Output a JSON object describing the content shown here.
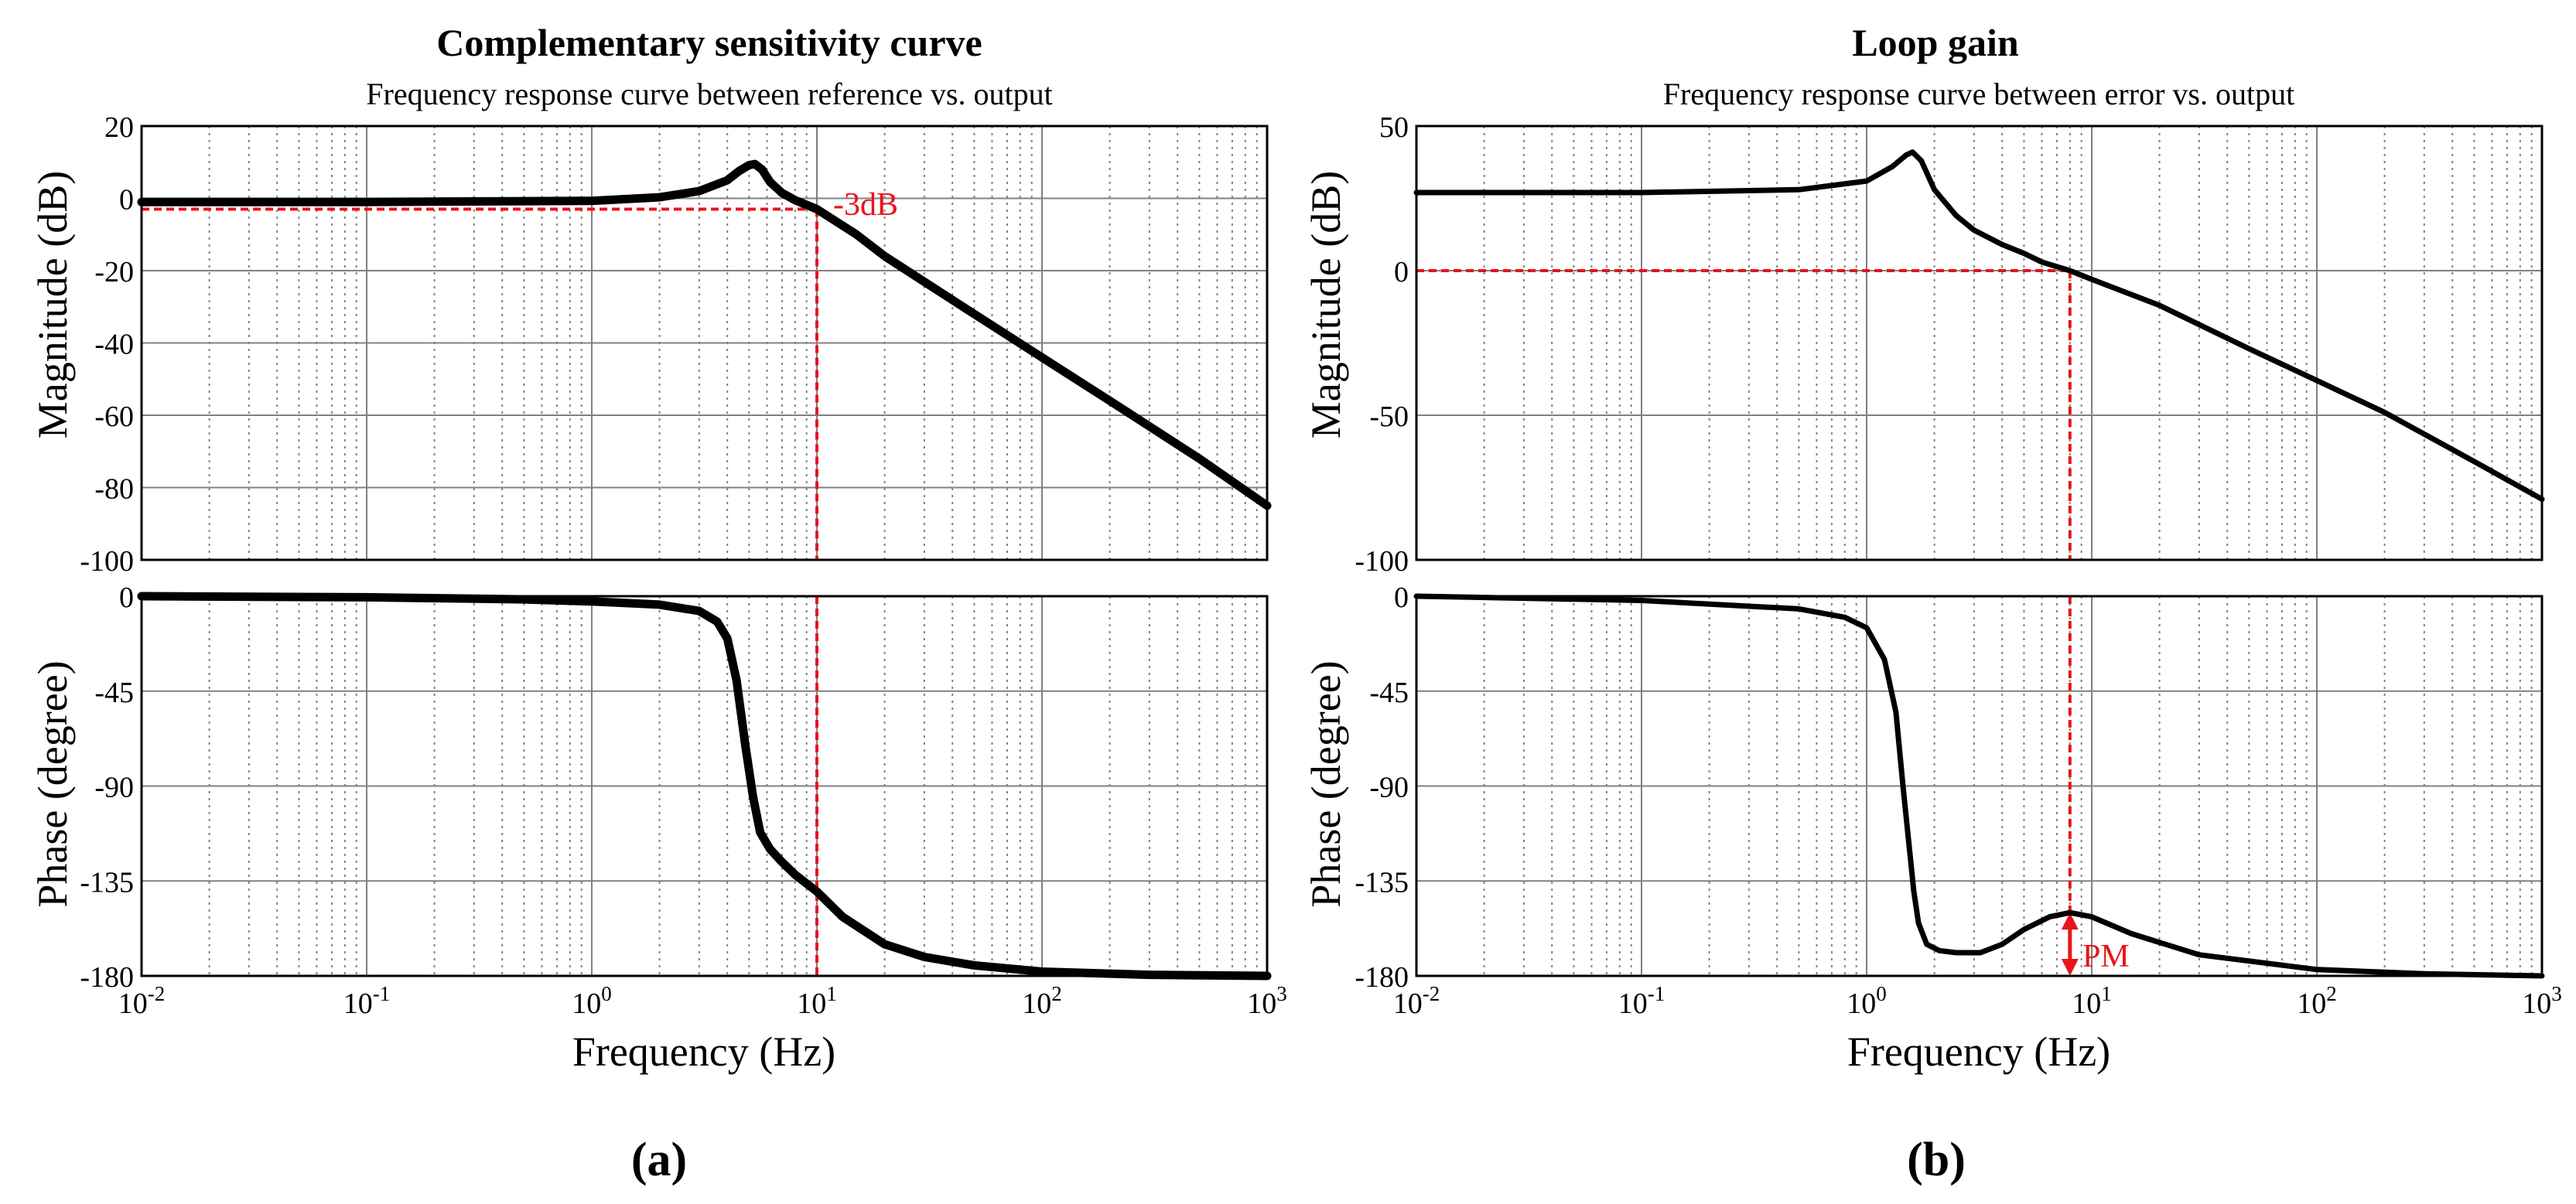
{
  "colors": {
    "curve": "#000000",
    "annotation": "#e8141b",
    "grid": "#808080",
    "axis": "#000000"
  },
  "chart_data": [
    {
      "type": "line",
      "panel_label": "(a)",
      "title": "Complementary sensitivity curve",
      "subtitle": "Frequency response curve between reference vs. output",
      "xlabel": "Frequency (Hz)",
      "x_scale": "log",
      "xlim": [
        0.01,
        1000
      ],
      "x_ticks": [
        {
          "base": "10",
          "exp": "-2"
        },
        {
          "base": "10",
          "exp": "-1"
        },
        {
          "base": "10",
          "exp": "0"
        },
        {
          "base": "10",
          "exp": "1"
        },
        {
          "base": "10",
          "exp": "2"
        },
        {
          "base": "10",
          "exp": "3"
        }
      ],
      "magnitude": {
        "ylabel": "Magnitude (dB)",
        "ylim": [
          -100,
          20
        ],
        "y_ticks": [
          20,
          0,
          -20,
          -40,
          -60,
          -80,
          -100
        ],
        "y_tick_labels": [
          "20",
          "0",
          "-20",
          "-40",
          "-60",
          "-80",
          "-100"
        ],
        "series": [
          {
            "name": "magnitude",
            "x": [
              0.01,
              0.1,
              1,
              2,
              3,
              4,
              4.5,
              5,
              5.3,
              5.7,
              6.2,
              7,
              8,
              10,
              15,
              20,
              50,
              100,
              200,
              500,
              1000
            ],
            "y": [
              -1,
              -1,
              -0.7,
              0.3,
              2,
              5,
              7.5,
              9.2,
              9.5,
              8,
              4.5,
              1.5,
              -0.5,
              -3,
              -10,
              -16,
              -32,
              -44,
              -56,
              -72,
              -85
            ]
          }
        ]
      },
      "phase": {
        "ylabel": "Phase (degree)",
        "ylim": [
          -180,
          0
        ],
        "y_ticks": [
          0,
          -45,
          -90,
          -135,
          -180
        ],
        "y_tick_labels": [
          "0",
          "-45",
          "-90",
          "-135",
          "-180"
        ],
        "series": [
          {
            "name": "phase",
            "x": [
              0.01,
              0.1,
              0.5,
              1,
              2,
              3,
              3.6,
              4,
              4.4,
              4.8,
              5.2,
              5.6,
              6.2,
              7,
              8,
              10,
              13,
              20,
              30,
              50,
              100,
              300,
              1000
            ],
            "y": [
              0,
              -0.5,
              -1.5,
              -2.5,
              -4,
              -7,
              -12,
              -20,
              -40,
              -70,
              -95,
              -112,
              -120,
              -126,
              -132,
              -140,
              -152,
              -165,
              -171,
              -175,
              -178,
              -179.5,
              -180
            ]
          }
        ]
      },
      "annotation": {
        "label": "-3dB",
        "x": 10,
        "y_mag": -3
      }
    },
    {
      "type": "line",
      "panel_label": "(b)",
      "title": "Loop gain",
      "subtitle": "Frequency response curve between error vs. output",
      "xlabel": "Frequency (Hz)",
      "x_scale": "log",
      "xlim": [
        0.01,
        1000
      ],
      "x_ticks": [
        {
          "base": "10",
          "exp": "-2"
        },
        {
          "base": "10",
          "exp": "-1"
        },
        {
          "base": "10",
          "exp": "0"
        },
        {
          "base": "10",
          "exp": "1"
        },
        {
          "base": "10",
          "exp": "2"
        },
        {
          "base": "10",
          "exp": "3"
        }
      ],
      "magnitude": {
        "ylabel": "Magnitude (dB)",
        "ylim": [
          -100,
          50
        ],
        "y_ticks": [
          50,
          0,
          -50,
          -100
        ],
        "y_tick_labels": [
          "50",
          "0",
          "-50",
          "-100"
        ],
        "series": [
          {
            "name": "magnitude",
            "x": [
              0.01,
              0.1,
              0.5,
              1,
              1.3,
              1.5,
              1.6,
              1.75,
              2,
              2.5,
              3,
              4,
              5,
              6,
              8,
              10,
              20,
              50,
              100,
              200,
              500,
              1000
            ],
            "y": [
              27,
              27,
              28,
              31,
              36,
              40,
              41,
              38,
              28,
              19,
              14,
              9,
              6,
              3,
              0,
              -3,
              -12,
              -27,
              -38,
              -49,
              -66,
              -79
            ]
          }
        ]
      },
      "phase": {
        "ylabel": "Phase (degree)",
        "ylim": [
          -180,
          0
        ],
        "y_ticks": [
          0,
          -45,
          -90,
          -135,
          -180
        ],
        "y_tick_labels": [
          "0",
          "-45",
          "-90",
          "-135",
          "-180"
        ],
        "series": [
          {
            "name": "phase",
            "x": [
              0.01,
              0.1,
              0.5,
              0.8,
              1,
              1.2,
              1.35,
              1.45,
              1.55,
              1.62,
              1.7,
              1.85,
              2.1,
              2.5,
              3.2,
              4,
              5,
              6.5,
              8,
              10,
              15,
              30,
              100,
              300,
              1000
            ],
            "y": [
              0,
              -2,
              -6,
              -10,
              -15,
              -30,
              -55,
              -90,
              -120,
              -140,
              -155,
              -165,
              -168,
              -169,
              -169,
              -165,
              -158,
              -152,
              -150,
              -152,
              -160,
              -170,
              -177,
              -179,
              -180
            ]
          }
        ]
      },
      "annotation": {
        "label": "PM",
        "x": 8,
        "y_mag": 0,
        "y_phase_top": -150,
        "y_phase_bottom": -180
      }
    }
  ]
}
